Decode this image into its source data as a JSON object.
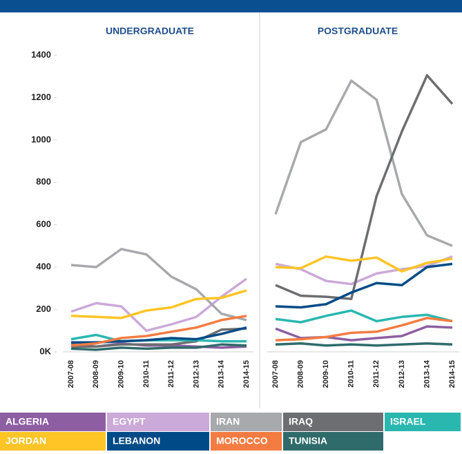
{
  "chart_data": {
    "type": "line",
    "categories": [
      "2007-08",
      "2008-09",
      "2009-10",
      "2010-11",
      "2011-12",
      "2012-13",
      "2013-14",
      "2014-15"
    ],
    "ylim": [
      0,
      1400
    ],
    "yticks": [
      {
        "value": 0,
        "label": "0K"
      },
      200,
      400,
      600,
      800,
      1000,
      1200,
      1400
    ],
    "legend": [
      {
        "name": "ALGERIA",
        "color": "#8e5ea2"
      },
      {
        "name": "EGYPT",
        "color": "#cba9d8"
      },
      {
        "name": "IRAN",
        "color": "#a7a9ac"
      },
      {
        "name": "IRAQ",
        "color": "#6d6e71"
      },
      {
        "name": "ISRAEL",
        "color": "#2ab7b0"
      },
      {
        "name": "JORDAN",
        "color": "#ffc425"
      },
      {
        "name": "LEBANON",
        "color": "#004b87"
      },
      {
        "name": "MOROCCO",
        "color": "#f47c42"
      },
      {
        "name": "TUNISIA",
        "color": "#2f6b6b"
      }
    ],
    "panels": [
      {
        "title": "UNDERGRADUATE",
        "series": [
          {
            "values": [
              35,
              25,
              40,
              30,
              30,
              25,
              20,
              25
            ]
          },
          {
            "values": [
              190,
              230,
              215,
              100,
              130,
              165,
              260,
              345
            ]
          },
          {
            "values": [
              410,
              400,
              485,
              460,
              355,
              295,
              180,
              150
            ]
          },
          {
            "values": [
              25,
              25,
              35,
              35,
              35,
              50,
              105,
              110
            ]
          },
          {
            "values": [
              60,
              80,
              50,
              55,
              55,
              55,
              50,
              50
            ]
          },
          {
            "values": [
              170,
              165,
              160,
              195,
              210,
              250,
              255,
              290
            ]
          },
          {
            "values": [
              45,
              45,
              50,
              55,
              65,
              60,
              85,
              115
            ]
          },
          {
            "values": [
              30,
              40,
              65,
              75,
              95,
              115,
              150,
              170
            ]
          },
          {
            "values": [
              15,
              10,
              20,
              15,
              20,
              20,
              35,
              30
            ]
          }
        ]
      },
      {
        "title": "POSTGRADUATE",
        "series": [
          {
            "values": [
              110,
              65,
              70,
              55,
              65,
              75,
              120,
              115
            ]
          },
          {
            "values": [
              415,
              390,
              335,
              320,
              370,
              390,
              405,
              450
            ]
          },
          {
            "values": [
              650,
              990,
              1050,
              1280,
              1190,
              745,
              550,
              500
            ]
          },
          {
            "values": [
              315,
              265,
              260,
              250,
              735,
              1040,
              1305,
              1170
            ]
          },
          {
            "values": [
              155,
              140,
              170,
              195,
              145,
              165,
              175,
              145
            ]
          },
          {
            "values": [
              400,
              395,
              450,
              430,
              445,
              380,
              420,
              440
            ]
          },
          {
            "values": [
              215,
              210,
              225,
              280,
              325,
              315,
              400,
              415
            ]
          },
          {
            "values": [
              55,
              60,
              70,
              90,
              95,
              125,
              160,
              145
            ]
          },
          {
            "values": [
              35,
              40,
              30,
              35,
              30,
              35,
              40,
              35
            ]
          }
        ]
      }
    ]
  }
}
